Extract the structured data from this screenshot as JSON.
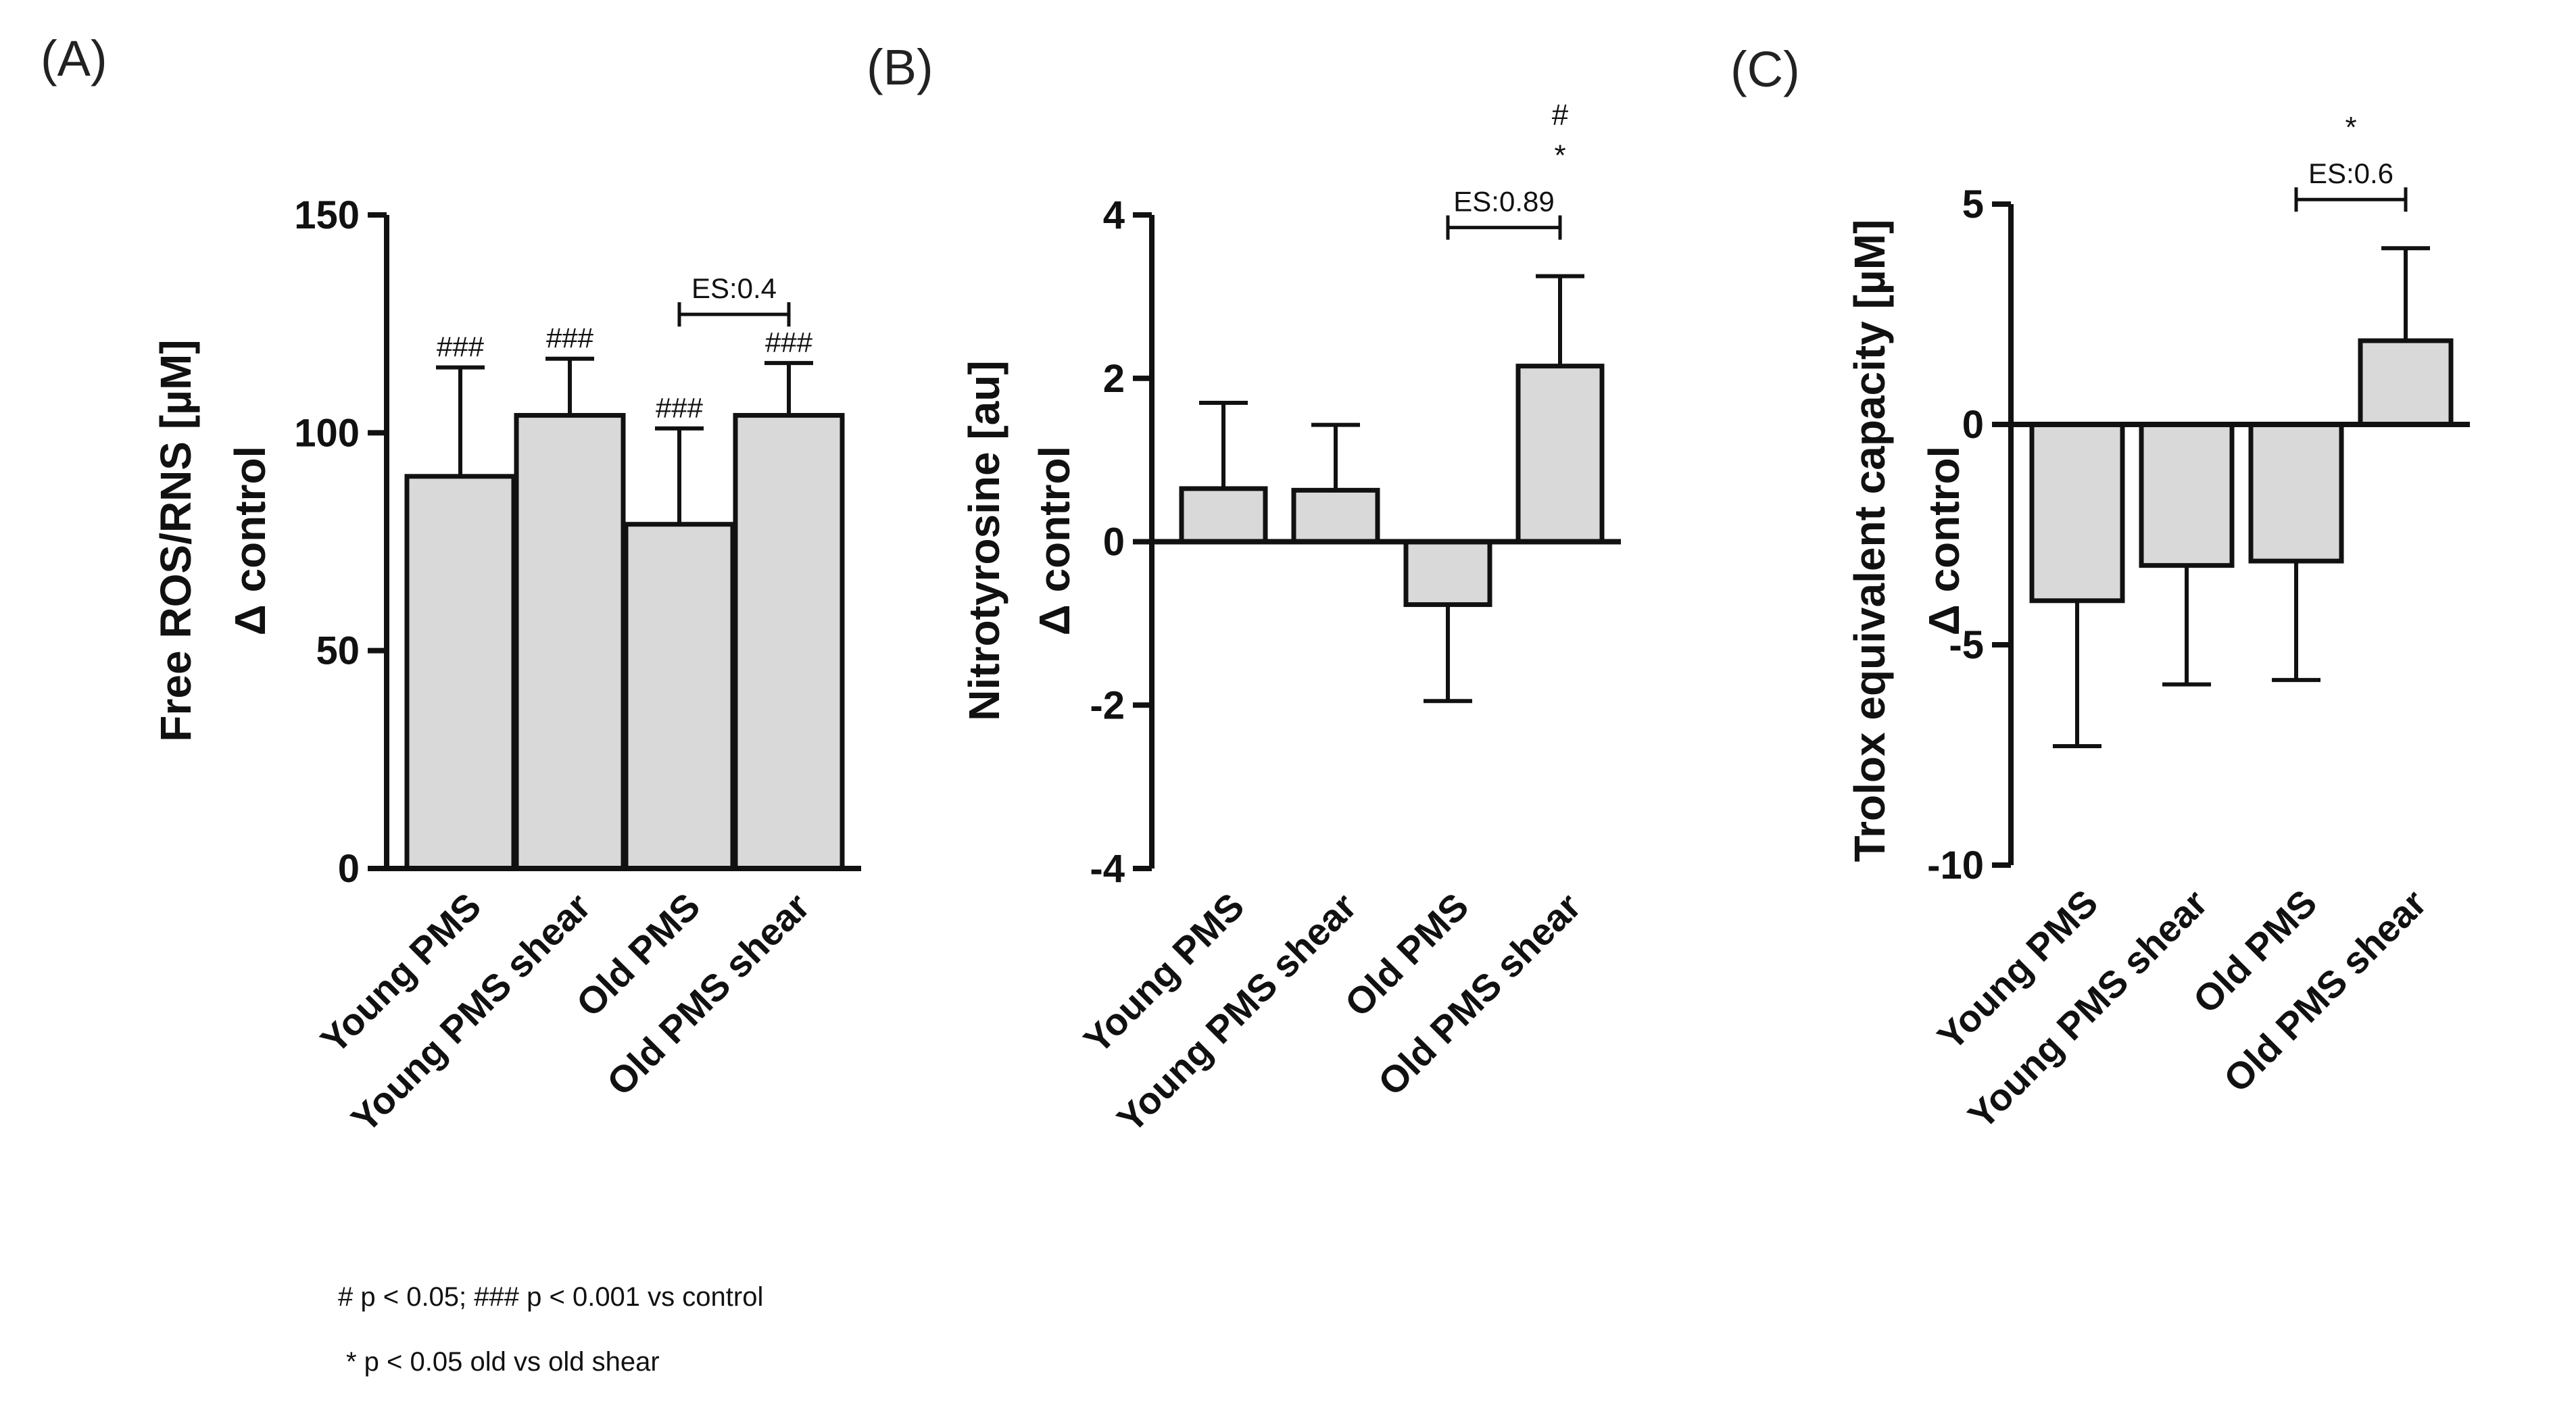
{
  "chart_data": [
    {
      "type": "bar",
      "panel_label": "(A)",
      "categories": [
        "Young PMS",
        "Young PMS shear",
        "Old PMS",
        "Old PMS shear"
      ],
      "values": [
        90,
        104,
        79,
        104
      ],
      "errors": [
        25,
        13,
        22,
        12
      ],
      "ylabel_lines": [
        "Free ROS/RNS [µM]",
        "Δ control"
      ],
      "ylim": [
        0,
        150
      ],
      "yticks": [
        0,
        50,
        100,
        150
      ],
      "bar_annotations": [
        "###",
        "###",
        "###",
        "###"
      ],
      "bracket": {
        "from": 2,
        "to": 3,
        "label": "ES:0.4",
        "marks": []
      },
      "bar_color": "#d9d9d9",
      "grid": false
    },
    {
      "type": "bar",
      "panel_label": "(B)",
      "categories": [
        "Young PMS",
        "Young PMS shear",
        "Old PMS",
        "Old PMS shear"
      ],
      "values": [
        0.65,
        0.63,
        -0.77,
        2.15
      ],
      "errors": [
        1.05,
        0.8,
        1.18,
        1.1
      ],
      "ylabel_lines": [
        "Nitrotyrosine [au]",
        "Δ control"
      ],
      "ylim": [
        -4,
        4
      ],
      "yticks": [
        -4,
        -2,
        0,
        2,
        4
      ],
      "bar_annotations": [
        "",
        "",
        "",
        ""
      ],
      "bracket": {
        "from": 2,
        "to": 3,
        "label": "ES:0.89",
        "marks": [
          "*",
          "#"
        ]
      },
      "bar_color": "#d9d9d9",
      "grid": false
    },
    {
      "type": "bar",
      "panel_label": "(C)",
      "categories": [
        "Young PMS",
        "Young PMS shear",
        "Old PMS",
        "Old PMS shear"
      ],
      "values": [
        -4.0,
        -3.2,
        -3.1,
        1.9
      ],
      "errors": [
        3.3,
        2.7,
        2.7,
        2.1
      ],
      "ylabel_lines": [
        "Trolox equivalent capacity [µM]",
        "Δ control"
      ],
      "ylim": [
        -10,
        5
      ],
      "yticks": [
        -10,
        -5,
        0,
        5
      ],
      "bar_annotations": [
        "",
        "",
        "",
        ""
      ],
      "bracket": {
        "from": 2,
        "to": 3,
        "label": "ES:0.6",
        "marks": [
          "*"
        ]
      },
      "bar_color": "#d9d9d9",
      "grid": false
    }
  ],
  "footnotes": [
    "# p < 0.05; ### p < 0.001 vs control",
    "* p < 0.05 old vs old shear"
  ]
}
